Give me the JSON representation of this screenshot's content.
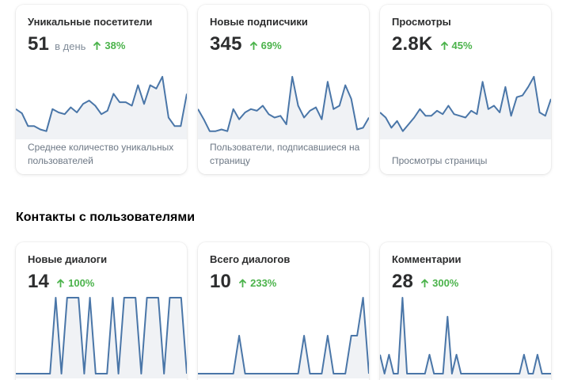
{
  "colors": {
    "line": "#4a76a8",
    "area": "#f0f2f5",
    "positive": "#4bb34b",
    "muted_text": "#6d7885"
  },
  "section_contacts": {
    "title": "Контакты с пользователями"
  },
  "cards": {
    "visitors": {
      "title": "Уникальные посетители",
      "value": "51",
      "unit": "в день",
      "delta": "38%",
      "description": "Среднее количество уникальных пользователей",
      "trend_icon": "arrow-up-icon",
      "chart_data": {
        "type": "area",
        "values": [
          30,
          25,
          10,
          10,
          6,
          4,
          30,
          26,
          24,
          32,
          26,
          36,
          40,
          34,
          24,
          28,
          48,
          38,
          38,
          34,
          58,
          36,
          58,
          54,
          68,
          20,
          10,
          10,
          48
        ],
        "ylim": [
          0,
          80
        ]
      }
    },
    "subscribers": {
      "title": "Новые подписчики",
      "value": "345",
      "delta": "69%",
      "description": "Пользователи, подписавшиеся на страницу",
      "trend_icon": "arrow-up-icon",
      "chart_data": {
        "type": "area",
        "values": [
          30,
          18,
          4,
          4,
          6,
          4,
          30,
          18,
          26,
          30,
          28,
          34,
          24,
          20,
          22,
          12,
          68,
          34,
          20,
          28,
          32,
          18,
          62,
          30,
          34,
          58,
          42,
          6,
          8,
          20
        ],
        "ylim": [
          0,
          80
        ]
      }
    },
    "views": {
      "title": "Просмотры",
      "value": "2.8K",
      "delta": "45%",
      "description": "Просмотры страницы",
      "trend_icon": "arrow-up-icon",
      "chart_data": {
        "type": "area",
        "values": [
          26,
          20,
          8,
          16,
          4,
          12,
          20,
          30,
          22,
          22,
          28,
          24,
          34,
          24,
          22,
          20,
          28,
          24,
          62,
          30,
          34,
          26,
          56,
          22,
          44,
          46,
          56,
          68,
          26,
          22,
          42
        ],
        "ylim": [
          0,
          80
        ]
      }
    },
    "new_dialogs": {
      "title": "Новые диалоги",
      "value": "14",
      "delta": "100%",
      "trend_icon": "arrow-up-icon",
      "chart_data": {
        "type": "line",
        "values": [
          0,
          0,
          0,
          0,
          0,
          0,
          0,
          1,
          0,
          1,
          1,
          1,
          0,
          1,
          0,
          0,
          0,
          1,
          0,
          1,
          1,
          1,
          0,
          1,
          1,
          1,
          0,
          1,
          1,
          1,
          0
        ],
        "ylim": [
          0,
          1
        ]
      }
    },
    "total_dialogs": {
      "title": "Всего диалогов",
      "value": "10",
      "delta": "233%",
      "trend_icon": "arrow-up-icon",
      "chart_data": {
        "type": "line",
        "values": [
          0,
          0,
          0,
          0,
          0,
          0,
          0,
          1,
          0,
          0,
          0,
          0,
          0,
          0,
          0,
          0,
          0,
          0,
          1,
          0,
          0,
          0,
          1,
          0,
          0,
          0,
          1,
          1,
          2,
          0
        ],
        "ylim": [
          0,
          2
        ]
      }
    },
    "comments": {
      "title": "Комментарии",
      "value": "28",
      "delta": "300%",
      "trend_icon": "arrow-up-icon",
      "chart_data": {
        "type": "line",
        "values": [
          1,
          0,
          1,
          0,
          0,
          4,
          0,
          0,
          0,
          0,
          0,
          1,
          0,
          0,
          0,
          3,
          0,
          1,
          0,
          0,
          0,
          0,
          0,
          0,
          0,
          0,
          0,
          0,
          0,
          0,
          0,
          0,
          1,
          0,
          0,
          1,
          0,
          0,
          0
        ],
        "ylim": [
          0,
          4
        ]
      }
    }
  }
}
